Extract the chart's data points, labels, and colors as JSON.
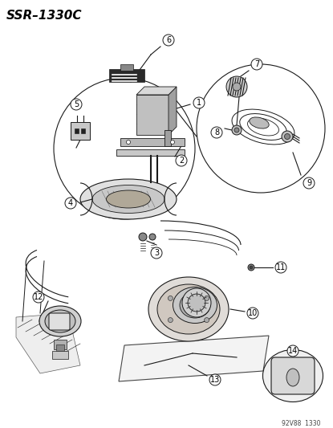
{
  "title": "SSR–1330C",
  "bg_color": "#ffffff",
  "line_color": "#1a1a1a",
  "footer_text": "92V88  1330",
  "title_fontsize": 11,
  "callout_fontsize": 7,
  "footer_fontsize": 5.5
}
